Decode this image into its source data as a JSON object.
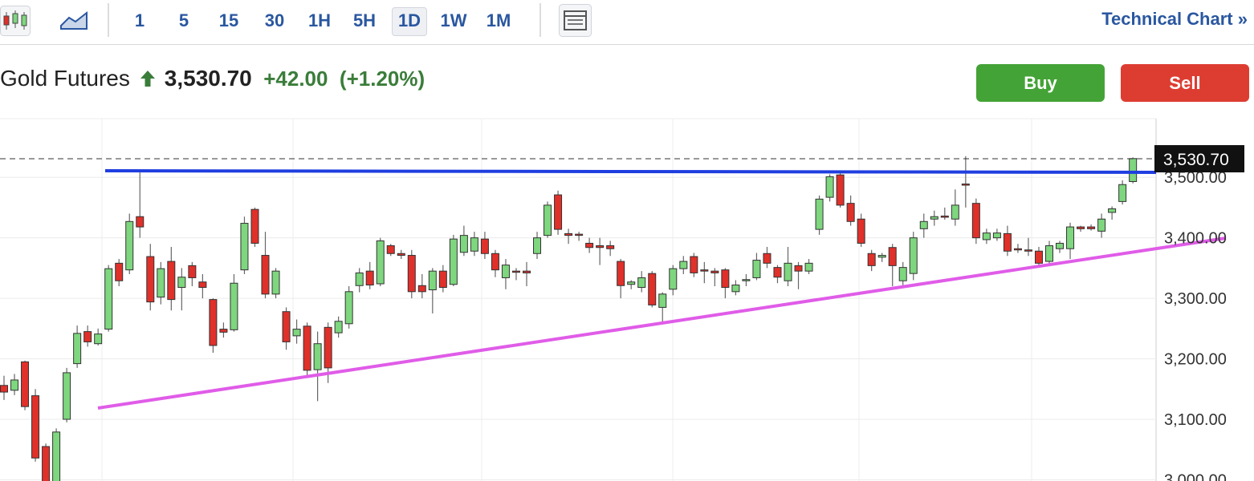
{
  "toolbar": {
    "intervals": [
      "1",
      "5",
      "15",
      "30",
      "1H",
      "5H",
      "1D",
      "1W",
      "1M"
    ],
    "selected_index": 6,
    "link": "Technical Chart",
    "link_arrow": "»"
  },
  "quote": {
    "name": "Gold Futures",
    "price": "3,530.70",
    "change": "+42.00",
    "change_percent": "(+1.20%)"
  },
  "buttons": [
    "Buy",
    "Sell"
  ],
  "chart_data": {
    "type": "candlestick",
    "up_color": "#7ed67e",
    "down_color": "#e0302a",
    "open": [
      3156,
      3148,
      3195,
      3139,
      3055,
      2990,
      3100,
      3192,
      3245,
      3225,
      3249,
      3358,
      3347,
      3435,
      3369,
      3302,
      3361,
      3318,
      3354,
      3327,
      3298,
      3249,
      3248,
      3347,
      3447,
      3371,
      3307,
      3278,
      3238,
      3254,
      3182,
      3252,
      3243,
      3258,
      3321,
      3345,
      3324,
      3387,
      3374,
      3371,
      3321,
      3314,
      3345,
      3323,
      3376,
      3378,
      3398,
      3374,
      3334,
      3345,
      3345,
      3374,
      3404,
      3471,
      3407,
      3406,
      3391,
      3387,
      3387,
      3361,
      3323,
      3318,
      3341,
      3285,
      3315,
      3349,
      3369,
      3347,
      3345,
      3347,
      3311,
      3329,
      3334,
      3374,
      3351,
      3329,
      3354,
      3345,
      3414,
      3467,
      3504,
      3457,
      3431,
      3374,
      3368,
      3384,
      3329,
      3341,
      3415,
      3431,
      3436,
      3431,
      3489,
      3457,
      3397,
      3400,
      3407,
      3382,
      3380,
      3378,
      3361,
      3382,
      3382,
      3418,
      3418,
      3411,
      3442,
      3460,
      3493
    ],
    "high": [
      3172,
      3175,
      3197,
      3150,
      3060,
      3085,
      3185,
      3255,
      3255,
      3250,
      3355,
      3365,
      3440,
      3508,
      3390,
      3360,
      3385,
      3350,
      3360,
      3340,
      3300,
      3260,
      3340,
      3435,
      3450,
      3410,
      3350,
      3285,
      3265,
      3260,
      3245,
      3260,
      3270,
      3320,
      3350,
      3360,
      3400,
      3390,
      3380,
      3380,
      3340,
      3350,
      3355,
      3405,
      3420,
      3410,
      3410,
      3380,
      3365,
      3350,
      3360,
      3410,
      3460,
      3478,
      3415,
      3410,
      3400,
      3400,
      3395,
      3365,
      3330,
      3345,
      3345,
      3310,
      3355,
      3370,
      3375,
      3360,
      3350,
      3350,
      3330,
      3340,
      3375,
      3385,
      3355,
      3385,
      3360,
      3365,
      3470,
      3505,
      3508,
      3470,
      3440,
      3380,
      3375,
      3390,
      3360,
      3410,
      3440,
      3445,
      3450,
      3480,
      3535,
      3465,
      3415,
      3415,
      3420,
      3390,
      3400,
      3385,
      3395,
      3395,
      3425,
      3420,
      3422,
      3440,
      3452,
      3495,
      3533
    ],
    "low": [
      3132,
      3140,
      3115,
      3030,
      2970,
      2980,
      3095,
      3185,
      3220,
      3222,
      3245,
      3320,
      3340,
      3400,
      3280,
      3290,
      3280,
      3280,
      3320,
      3300,
      3210,
      3235,
      3245,
      3340,
      3385,
      3300,
      3300,
      3215,
      3225,
      3170,
      3130,
      3160,
      3235,
      3250,
      3310,
      3315,
      3320,
      3370,
      3365,
      3300,
      3300,
      3275,
      3310,
      3320,
      3370,
      3370,
      3365,
      3335,
      3315,
      3330,
      3320,
      3365,
      3400,
      3405,
      3390,
      3395,
      3375,
      3355,
      3370,
      3300,
      3315,
      3310,
      3285,
      3260,
      3305,
      3340,
      3335,
      3325,
      3320,
      3300,
      3305,
      3320,
      3330,
      3350,
      3325,
      3320,
      3315,
      3340,
      3405,
      3460,
      3450,
      3420,
      3385,
      3345,
      3360,
      3320,
      3320,
      3330,
      3400,
      3420,
      3430,
      3420,
      3450,
      3390,
      3390,
      3395,
      3370,
      3375,
      3370,
      3355,
      3355,
      3375,
      3365,
      3410,
      3412,
      3400,
      3430,
      3455,
      3490
    ],
    "close": [
      3145,
      3165,
      3121,
      3036,
      2985,
      3079,
      3177,
      3242,
      3228,
      3241,
      3349,
      3329,
      3427,
      3418,
      3294,
      3349,
      3298,
      3335,
      3334,
      3318,
      3222,
      3244,
      3325,
      3424,
      3391,
      3307,
      3345,
      3228,
      3249,
      3181,
      3225,
      3185,
      3262,
      3311,
      3342,
      3322,
      3395,
      3374,
      3371,
      3311,
      3311,
      3345,
      3318,
      3398,
      3404,
      3400,
      3374,
      3347,
      3355,
      3343,
      3342,
      3400,
      3454,
      3414,
      3404,
      3405,
      3384,
      3384,
      3382,
      3321,
      3327,
      3334,
      3289,
      3307,
      3349,
      3361,
      3342,
      3345,
      3342,
      3318,
      3322,
      3331,
      3363,
      3358,
      3335,
      3358,
      3345,
      3358,
      3464,
      3501,
      3454,
      3427,
      3391,
      3354,
      3371,
      3354,
      3351,
      3400,
      3427,
      3435,
      3434,
      3454,
      3487,
      3400,
      3408,
      3408,
      3378,
      3380,
      3378,
      3358,
      3387,
      3391,
      3418,
      3415,
      3415,
      3431,
      3448,
      3488,
      3531
    ],
    "ylim": [
      2998,
      3597
    ],
    "yticks": [
      {
        "value": 3000,
        "label": "3,000.00"
      },
      {
        "value": 3100,
        "label": "3,100.00"
      },
      {
        "value": 3200,
        "label": "3,200.00"
      },
      {
        "value": 3300,
        "label": "3,300.00"
      },
      {
        "value": 3400,
        "label": "3,400.00"
      },
      {
        "value": 3500,
        "label": "3,500.00"
      }
    ],
    "grid": true,
    "last_price": {
      "value": 3530.7,
      "label": "3,530.70"
    }
  }
}
